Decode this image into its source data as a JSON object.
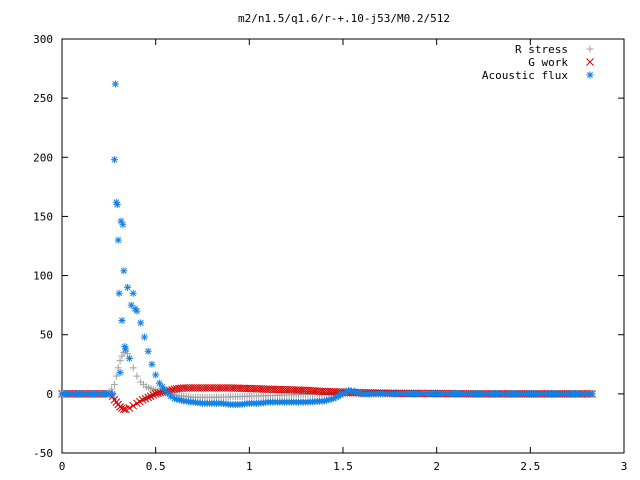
{
  "chart_data": {
    "type": "scatter",
    "title": "m2/n1.5/q1.6/r-+.10-j53/M0.2/512",
    "xlabel": "",
    "ylabel": "",
    "xlim": [
      0,
      3
    ],
    "ylim": [
      -50,
      300
    ],
    "xticks": [
      "0",
      "0.5",
      "1",
      "1.5",
      "2",
      "2.5",
      "3"
    ],
    "yticks": [
      "-50",
      "0",
      "50",
      "100",
      "150",
      "200",
      "250",
      "300"
    ],
    "grid": false,
    "legend_position": "top-right",
    "series": [
      {
        "name": "R stress",
        "marker": "plus",
        "color": "#a0a0a0",
        "x": [
          0.0,
          0.1,
          0.2,
          0.25,
          0.28,
          0.29,
          0.3,
          0.31,
          0.32,
          0.33,
          0.34,
          0.35,
          0.36,
          0.38,
          0.4,
          0.42,
          0.45,
          0.5,
          0.55,
          0.6,
          0.65,
          0.7,
          0.8,
          0.9,
          1.0,
          1.1,
          1.2,
          1.3,
          1.4,
          1.5,
          1.7,
          2.0,
          2.3,
          2.6,
          2.83
        ],
        "y": [
          0,
          0,
          0,
          0,
          8,
          15,
          22,
          28,
          32,
          35,
          36,
          34,
          30,
          22,
          15,
          10,
          6,
          3,
          1,
          -1,
          -2,
          -3,
          -3,
          -2.5,
          -2,
          -1.5,
          -1,
          -0.5,
          -0.3,
          0,
          0,
          0,
          0,
          0,
          0
        ]
      },
      {
        "name": "G work",
        "marker": "x",
        "color": "#d40000",
        "x": [
          0.0,
          0.1,
          0.2,
          0.25,
          0.27,
          0.28,
          0.29,
          0.3,
          0.31,
          0.32,
          0.33,
          0.34,
          0.36,
          0.38,
          0.4,
          0.43,
          0.46,
          0.5,
          0.55,
          0.6,
          0.65,
          0.7,
          0.8,
          0.9,
          1.0,
          1.1,
          1.2,
          1.3,
          1.4,
          1.5,
          1.6,
          1.8,
          2.0,
          2.2,
          2.5,
          2.83
        ],
        "y": [
          0,
          0,
          0,
          0,
          -2,
          -5,
          -7,
          -9,
          -11,
          -12,
          -13,
          -13,
          -12,
          -10,
          -8,
          -5,
          -3,
          0,
          2,
          4,
          5,
          5,
          5,
          5,
          4.5,
          4,
          3.5,
          3,
          2,
          1.5,
          1,
          0.5,
          0.3,
          0,
          0,
          0
        ]
      },
      {
        "name": "Acoustic flux",
        "marker": "star",
        "color": "#1480e6",
        "x": [
          0.0,
          0.1,
          0.2,
          0.25,
          0.27,
          0.28,
          0.285,
          0.29,
          0.295,
          0.3,
          0.305,
          0.31,
          0.315,
          0.32,
          0.325,
          0.33,
          0.335,
          0.34,
          0.35,
          0.36,
          0.37,
          0.38,
          0.39,
          0.4,
          0.42,
          0.44,
          0.46,
          0.48,
          0.5,
          0.52,
          0.55,
          0.58,
          0.6,
          0.65,
          0.7,
          0.75,
          0.8,
          0.85,
          0.9,
          0.95,
          1.0,
          1.05,
          1.1,
          1.2,
          1.3,
          1.4,
          1.45,
          1.5,
          1.53,
          1.56,
          1.6,
          1.7,
          1.8,
          2.0,
          2.2,
          2.5,
          2.83
        ],
        "y": [
          0,
          0,
          0,
          0,
          0,
          198,
          262,
          162,
          160,
          130,
          85,
          18,
          146,
          62,
          143,
          104,
          40,
          38,
          90,
          30,
          75,
          85,
          72,
          70,
          60,
          48,
          36,
          25,
          16,
          9,
          3,
          -2,
          -4,
          -6,
          -7,
          -8,
          -8,
          -8,
          -9,
          -9,
          -8,
          -8,
          -7,
          -7,
          -7,
          -6,
          -4,
          0,
          3,
          2,
          0,
          0,
          0,
          0,
          0,
          0,
          0
        ]
      }
    ]
  }
}
